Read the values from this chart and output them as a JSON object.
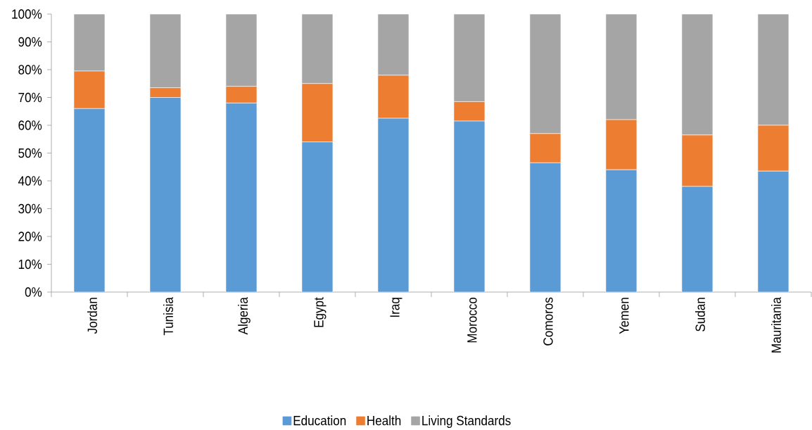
{
  "chart_data": {
    "type": "bar",
    "stacked": true,
    "categories": [
      "Jordan",
      "Tunisia",
      "Algeria",
      "Egypt",
      "Iraq",
      "Morocco",
      "Comoros",
      "Yemen",
      "Sudan",
      "Mauritania"
    ],
    "series": [
      {
        "name": "Education",
        "color": "#5b9bd5",
        "values": [
          66,
          70,
          68,
          54,
          62.5,
          61.5,
          46.5,
          44,
          38,
          43.5
        ]
      },
      {
        "name": "Health",
        "color": "#ed7d31",
        "values": [
          13.5,
          3.5,
          6,
          21,
          15.5,
          7,
          10.5,
          18,
          18.5,
          16.5
        ]
      },
      {
        "name": "Living Standards",
        "color": "#a5a5a5",
        "values": [
          20.5,
          26.5,
          26,
          25,
          22,
          31.5,
          43,
          38,
          43.5,
          40
        ]
      }
    ],
    "ylim": [
      0,
      100
    ],
    "yticks": [
      {
        "value": 0,
        "label": "0%"
      },
      {
        "value": 10,
        "label": "10%"
      },
      {
        "value": 20,
        "label": "20%"
      },
      {
        "value": 30,
        "label": "30%"
      },
      {
        "value": 40,
        "label": "40%"
      },
      {
        "value": 50,
        "label": "50%"
      },
      {
        "value": 60,
        "label": "60%"
      },
      {
        "value": 70,
        "label": "70%"
      },
      {
        "value": 80,
        "label": "80%"
      },
      {
        "value": 90,
        "label": "90%"
      },
      {
        "value": 100,
        "label": "100%"
      }
    ],
    "legend": "bottom"
  }
}
